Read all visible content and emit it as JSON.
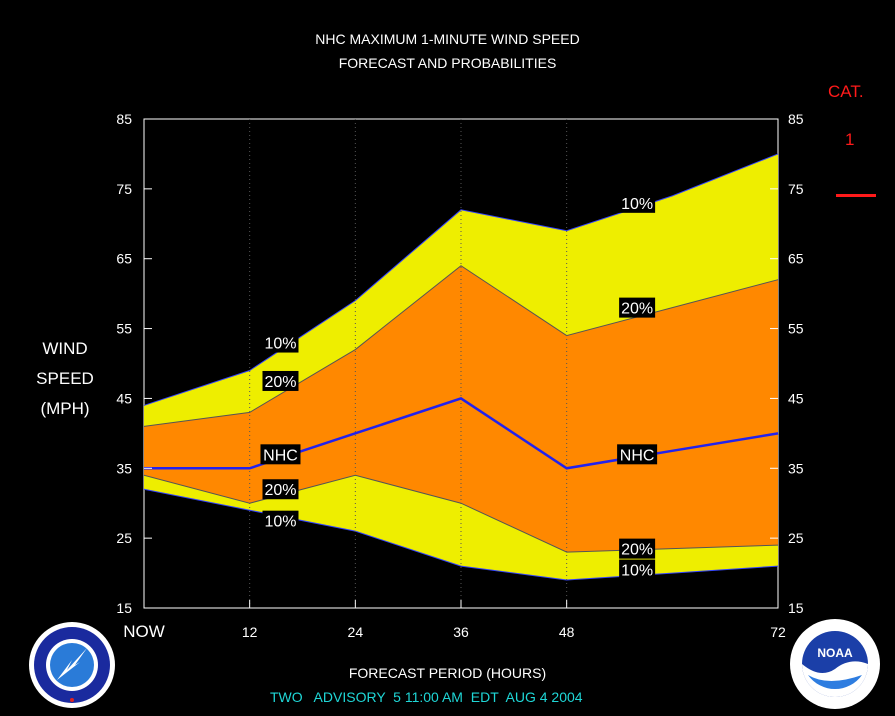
{
  "header": {
    "title_line1": "NHC MAXIMUM 1-MINUTE WIND SPEED",
    "title_line2": "FORECAST AND PROBABILITIES"
  },
  "y_axis_label": [
    "WIND",
    "SPEED",
    "(MPH)"
  ],
  "category_legend": {
    "title": "CAT.",
    "value": "1",
    "color": "#ff1a1a"
  },
  "footer": {
    "xlabel": "FORECAST PERIOD (HOURS)",
    "advisory": "TWO   ADVISORY  5 11:00 AM  EDT  AUG 4 2004"
  },
  "colors": {
    "band_10": "#eeee00",
    "band_20": "#ff8800",
    "nhc_line": "#2222ee",
    "grid": "#555555"
  },
  "chart_data": {
    "type": "area",
    "x": [
      0,
      12,
      24,
      36,
      48,
      60,
      72
    ],
    "x_tick_labels": [
      "NOW",
      "12",
      "24",
      "36",
      "48",
      "72"
    ],
    "x_tick_values": [
      0,
      12,
      24,
      36,
      48,
      72
    ],
    "ylim": [
      15,
      85
    ],
    "y_ticks": [
      15,
      25,
      35,
      45,
      55,
      65,
      75,
      85
    ],
    "xlabel": "FORECAST PERIOD (HOURS)",
    "ylabel": "WIND SPEED (MPH)",
    "grid": "vertical dotted",
    "series": [
      {
        "name": "10%",
        "role": "upper_10",
        "values": [
          44,
          49,
          59,
          72,
          69,
          74,
          80
        ]
      },
      {
        "name": "20%",
        "role": "upper_20",
        "values": [
          41,
          43,
          52,
          64,
          54,
          58,
          62
        ]
      },
      {
        "name": "NHC",
        "role": "nhc",
        "values": [
          35,
          35,
          40,
          45,
          35,
          37.5,
          40
        ]
      },
      {
        "name": "20%",
        "role": "lower_20",
        "values": [
          34,
          30,
          34,
          30,
          23,
          23.5,
          24
        ]
      },
      {
        "name": "10%",
        "role": "lower_10",
        "values": [
          32,
          29,
          26,
          21,
          19,
          20,
          21
        ]
      }
    ],
    "annotations": [
      {
        "text": "10%",
        "x": 15.5,
        "y": 53
      },
      {
        "text": "20%",
        "x": 15.5,
        "y": 47.5
      },
      {
        "text": "NHC",
        "x": 15.5,
        "y": 37
      },
      {
        "text": "20%",
        "x": 15.5,
        "y": 32
      },
      {
        "text": "10%",
        "x": 15.5,
        "y": 27.5
      },
      {
        "text": "10%",
        "x": 56,
        "y": 73
      },
      {
        "text": "20%",
        "x": 56,
        "y": 58
      },
      {
        "text": "NHC",
        "x": 56,
        "y": 37
      },
      {
        "text": "20%",
        "x": 56,
        "y": 23.5
      },
      {
        "text": "10%",
        "x": 56,
        "y": 20.5
      }
    ]
  }
}
